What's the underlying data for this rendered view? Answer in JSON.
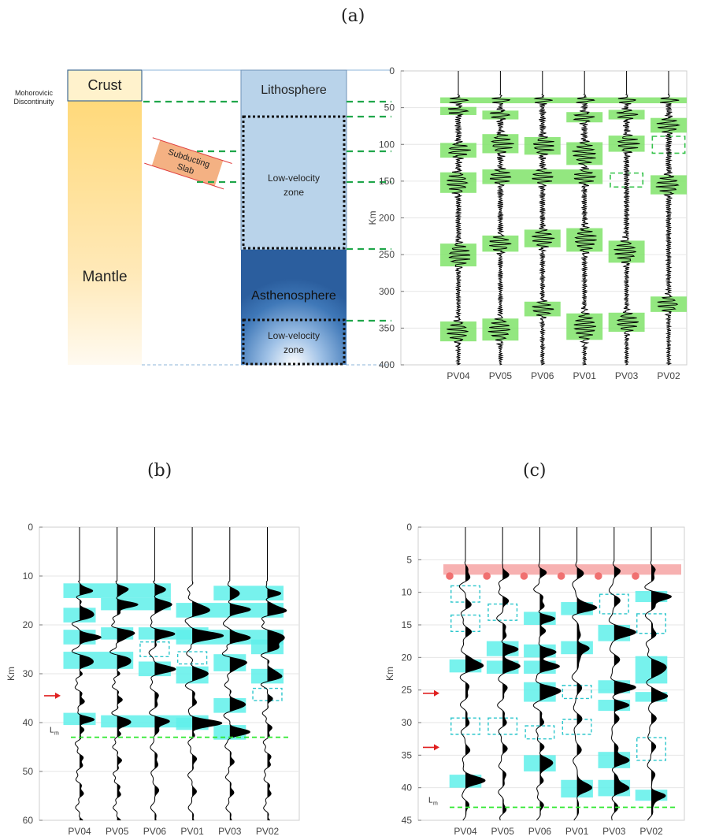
{
  "labels": {
    "a": "(a)",
    "b": "(b)",
    "c": "(c)"
  },
  "schematic": {
    "moho_line1": "Mohorovicic",
    "moho_line2": "Discontinuity",
    "crust": "Crust",
    "mantle": "Mantle",
    "slab_line1": "Subducting",
    "slab_line2": "Slab",
    "lithosphere": "Lithosphere",
    "lvz1_line1": "Low-velocity",
    "lvz1_line2": "zone",
    "asthenosphere": "Asthenosphere",
    "lvz2_line1": "Low-velocity",
    "lvz2_line2": "zone",
    "colors": {
      "crust": "#fff2cc",
      "mantle_top": "#ffd97a",
      "lithosphere": "#b9d3ea",
      "asthenosphere": "#2f66a6",
      "slab": "#f4b183",
      "guide": "#1fa64a"
    }
  },
  "chart_data": [
    {
      "type": "wiggle-trace",
      "panel": "a",
      "ylabel": "Km",
      "ylim": [
        0,
        400
      ],
      "yticks": [
        0,
        50,
        100,
        150,
        200,
        250,
        300,
        350,
        400
      ],
      "stations": [
        "PV04",
        "PV05",
        "PV06",
        "PV01",
        "PV03",
        "PV02"
      ],
      "highlight_color": "#80e36a",
      "solid_boxes": [
        {
          "from": 0,
          "to": 5,
          "y0": 36,
          "y1": 44
        },
        {
          "from": 0,
          "to": 0,
          "y0": 49,
          "y1": 60
        },
        {
          "from": 0,
          "to": 0,
          "y0": 98,
          "y1": 118
        },
        {
          "from": 0,
          "to": 0,
          "y0": 138,
          "y1": 166
        },
        {
          "from": 0,
          "to": 0,
          "y0": 235,
          "y1": 266
        },
        {
          "from": 0,
          "to": 0,
          "y0": 341,
          "y1": 368
        },
        {
          "from": 1,
          "to": 1,
          "y0": 54,
          "y1": 66
        },
        {
          "from": 1,
          "to": 1,
          "y0": 86,
          "y1": 112
        },
        {
          "from": 1,
          "to": 3,
          "y0": 134,
          "y1": 154
        },
        {
          "from": 1,
          "to": 1,
          "y0": 224,
          "y1": 246
        },
        {
          "from": 1,
          "to": 1,
          "y0": 337,
          "y1": 367
        },
        {
          "from": 2,
          "to": 2,
          "y0": 90,
          "y1": 114
        },
        {
          "from": 2,
          "to": 2,
          "y0": 216,
          "y1": 240
        },
        {
          "from": 2,
          "to": 2,
          "y0": 314,
          "y1": 334
        },
        {
          "from": 3,
          "to": 3,
          "y0": 56,
          "y1": 70
        },
        {
          "from": 3,
          "to": 3,
          "y0": 97,
          "y1": 128
        },
        {
          "from": 3,
          "to": 3,
          "y0": 214,
          "y1": 246
        },
        {
          "from": 3,
          "to": 3,
          "y0": 330,
          "y1": 366
        },
        {
          "from": 4,
          "to": 4,
          "y0": 53,
          "y1": 66
        },
        {
          "from": 4,
          "to": 4,
          "y0": 88,
          "y1": 110
        },
        {
          "from": 4,
          "to": 4,
          "y0": 231,
          "y1": 261
        },
        {
          "from": 4,
          "to": 4,
          "y0": 329,
          "y1": 355
        },
        {
          "from": 5,
          "to": 5,
          "y0": 64,
          "y1": 84
        },
        {
          "from": 5,
          "to": 5,
          "y0": 142,
          "y1": 168
        },
        {
          "from": 5,
          "to": 5,
          "y0": 307,
          "y1": 328
        }
      ],
      "dashed_boxes": [
        {
          "from": 4,
          "to": 4,
          "y0": 139,
          "y1": 158
        },
        {
          "from": 5,
          "to": 5,
          "y0": 89,
          "y1": 112
        }
      ]
    },
    {
      "type": "wiggle-trace",
      "panel": "b",
      "ylabel": "Km",
      "ylim": [
        0,
        60
      ],
      "yticks": [
        0,
        10,
        20,
        30,
        40,
        50,
        60
      ],
      "stations": [
        "PV04",
        "PV05",
        "PV06",
        "PV01",
        "PV03",
        "PV02"
      ],
      "highlight_color": "#5ff0ea",
      "moho_label": "L",
      "moho_sub": "m",
      "moho_depth": 43,
      "arrows": [
        34.5
      ],
      "solid_boxes": [
        {
          "from": 0,
          "to": 2,
          "y0": 11.5,
          "y1": 14.5
        },
        {
          "from": 0,
          "to": 0,
          "y0": 16.5,
          "y1": 19.5
        },
        {
          "from": 0,
          "to": 0,
          "y0": 21,
          "y1": 24
        },
        {
          "from": 0,
          "to": 1,
          "y0": 25.5,
          "y1": 29
        },
        {
          "from": 0,
          "to": 0,
          "y0": 38,
          "y1": 40.5
        },
        {
          "from": 1,
          "to": 2,
          "y0": 14.5,
          "y1": 17
        },
        {
          "from": 1,
          "to": 1,
          "y0": 20.5,
          "y1": 23
        },
        {
          "from": 1,
          "to": 3,
          "y0": 38.5,
          "y1": 41
        },
        {
          "from": 2,
          "to": 3,
          "y0": 20.5,
          "y1": 23
        },
        {
          "from": 2,
          "to": 2,
          "y0": 27.5,
          "y1": 30.5
        },
        {
          "from": 3,
          "to": 5,
          "y0": 15.5,
          "y1": 18.5
        },
        {
          "from": 3,
          "to": 5,
          "y0": 21,
          "y1": 24
        },
        {
          "from": 3,
          "to": 3,
          "y0": 28.5,
          "y1": 32
        },
        {
          "from": 3,
          "to": 3,
          "y0": 39,
          "y1": 41.5
        },
        {
          "from": 4,
          "to": 5,
          "y0": 12,
          "y1": 15
        },
        {
          "from": 4,
          "to": 4,
          "y0": 26,
          "y1": 29.5
        },
        {
          "from": 4,
          "to": 4,
          "y0": 35,
          "y1": 38
        },
        {
          "from": 4,
          "to": 4,
          "y0": 40.5,
          "y1": 43.5
        },
        {
          "from": 5,
          "to": 5,
          "y0": 23,
          "y1": 26
        },
        {
          "from": 5,
          "to": 5,
          "y0": 29,
          "y1": 32
        }
      ],
      "dashed_boxes": [
        {
          "from": 2,
          "to": 2,
          "y0": 23.5,
          "y1": 26.5
        },
        {
          "from": 3,
          "to": 3,
          "y0": 25.5,
          "y1": 28
        },
        {
          "from": 5,
          "to": 5,
          "y0": 33,
          "y1": 35.5
        }
      ]
    },
    {
      "type": "wiggle-trace",
      "panel": "c",
      "ylabel": "Km",
      "ylim": [
        0,
        45
      ],
      "yticks": [
        0,
        5,
        10,
        15,
        20,
        25,
        30,
        35,
        40,
        45
      ],
      "stations": [
        "PV04",
        "PV05",
        "PV06",
        "PV01",
        "PV03",
        "PV02"
      ],
      "highlight_color": "#5ff0ea",
      "top_band_color": "#f6a9a9",
      "dot_color": "#f07070",
      "top_band": {
        "y0": 5.7,
        "y1": 7.3
      },
      "dots_depth": 7.5,
      "moho_label": "L",
      "moho_sub": "m",
      "moho_depth": 43,
      "arrows": [
        25.5,
        33.8
      ],
      "solid_boxes": [
        {
          "from": 0,
          "to": 0,
          "y0": 20.3,
          "y1": 22.3
        },
        {
          "from": 0,
          "to": 0,
          "y0": 38,
          "y1": 40
        },
        {
          "from": 1,
          "to": 1,
          "y0": 17.5,
          "y1": 19.8
        },
        {
          "from": 1,
          "to": 1,
          "y0": 20.5,
          "y1": 22.5
        },
        {
          "from": 2,
          "to": 2,
          "y0": 13,
          "y1": 15
        },
        {
          "from": 2,
          "to": 2,
          "y0": 18,
          "y1": 20
        },
        {
          "from": 2,
          "to": 2,
          "y0": 20.5,
          "y1": 22.5
        },
        {
          "from": 2,
          "to": 2,
          "y0": 23.8,
          "y1": 26.8
        },
        {
          "from": 2,
          "to": 2,
          "y0": 35,
          "y1": 37.5
        },
        {
          "from": 3,
          "to": 3,
          "y0": 11.5,
          "y1": 13.5
        },
        {
          "from": 3,
          "to": 3,
          "y0": 17.5,
          "y1": 19.5
        },
        {
          "from": 3,
          "to": 3,
          "y0": 38.8,
          "y1": 41.5
        },
        {
          "from": 4,
          "to": 4,
          "y0": 15,
          "y1": 17.5
        },
        {
          "from": 4,
          "to": 4,
          "y0": 23.5,
          "y1": 25.5
        },
        {
          "from": 4,
          "to": 4,
          "y0": 26.5,
          "y1": 28.2
        },
        {
          "from": 4,
          "to": 4,
          "y0": 34.5,
          "y1": 37
        },
        {
          "from": 4,
          "to": 4,
          "y0": 38.8,
          "y1": 41.3
        },
        {
          "from": 5,
          "to": 5,
          "y0": 9.8,
          "y1": 11.5
        },
        {
          "from": 5,
          "to": 5,
          "y0": 19.8,
          "y1": 24
        },
        {
          "from": 5,
          "to": 5,
          "y0": 25.3,
          "y1": 26.8
        },
        {
          "from": 5,
          "to": 5,
          "y0": 40.3,
          "y1": 42
        }
      ],
      "dashed_boxes": [
        {
          "from": 0,
          "to": 0,
          "y0": 9,
          "y1": 11.5
        },
        {
          "from": 0,
          "to": 0,
          "y0": 13.5,
          "y1": 16
        },
        {
          "from": 0,
          "to": 0,
          "y0": 29.3,
          "y1": 31.8
        },
        {
          "from": 1,
          "to": 1,
          "y0": 11.8,
          "y1": 14.3
        },
        {
          "from": 1,
          "to": 1,
          "y0": 29.3,
          "y1": 31.8
        },
        {
          "from": 2,
          "to": 2,
          "y0": 30.5,
          "y1": 32.5
        },
        {
          "from": 3,
          "to": 3,
          "y0": 24.3,
          "y1": 26.3
        },
        {
          "from": 3,
          "to": 3,
          "y0": 29.5,
          "y1": 31.8
        },
        {
          "from": 4,
          "to": 4,
          "y0": 10.3,
          "y1": 13.3
        },
        {
          "from": 5,
          "to": 5,
          "y0": 13.3,
          "y1": 16.3
        },
        {
          "from": 5,
          "to": 5,
          "y0": 32.3,
          "y1": 35.8
        }
      ]
    }
  ]
}
